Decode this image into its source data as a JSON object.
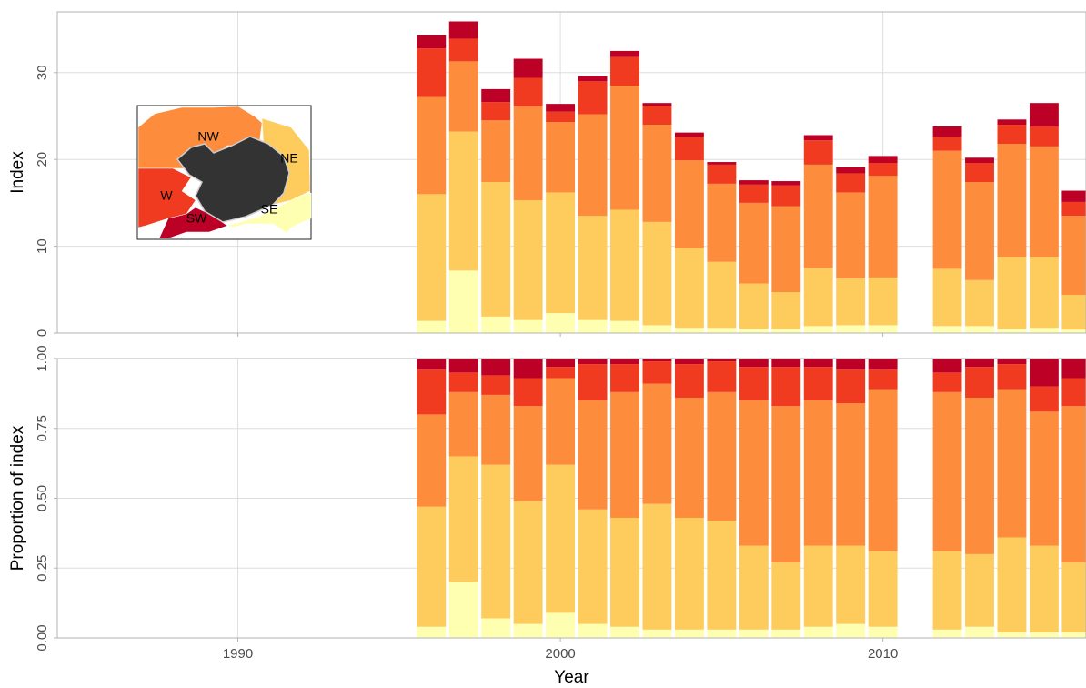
{
  "chart_data": [
    {
      "type": "stacked-bar",
      "ylabel": "Index",
      "x": [
        1996,
        1997,
        1998,
        1999,
        2000,
        2001,
        2002,
        2003,
        2004,
        2005,
        2006,
        2007,
        2008,
        2009,
        2010,
        2012,
        2013,
        2014,
        2015,
        2016
      ],
      "xlim": [
        1984.4,
        2016.3
      ],
      "xticks": [
        1990,
        2000,
        2010
      ],
      "ylim": [
        0,
        37
      ],
      "yticks": [
        0,
        10,
        20,
        30
      ],
      "grid": true,
      "series": [
        {
          "name": "SE",
          "color": "#ffffb2",
          "values": [
            1.4,
            7.2,
            1.9,
            1.5,
            2.3,
            1.5,
            1.4,
            0.9,
            0.6,
            0.6,
            0.5,
            0.5,
            0.8,
            0.9,
            0.9,
            0.8,
            0.8,
            0.5,
            0.6,
            0.4
          ]
        },
        {
          "name": "NE",
          "color": "#fecc5c",
          "values": [
            14.6,
            16.0,
            15.5,
            13.8,
            13.9,
            12.0,
            12.8,
            11.9,
            9.2,
            7.6,
            5.2,
            4.2,
            6.7,
            5.4,
            5.5,
            6.6,
            5.3,
            8.3,
            8.2,
            4.0
          ]
        },
        {
          "name": "NW",
          "color": "#fd8d3c",
          "values": [
            11.2,
            8.1,
            7.1,
            10.8,
            8.1,
            11.7,
            14.3,
            11.2,
            10.1,
            9.0,
            9.3,
            9.9,
            11.9,
            9.9,
            11.7,
            13.6,
            11.3,
            13.0,
            12.7,
            9.1
          ]
        },
        {
          "name": "W",
          "color": "#f03b20",
          "values": [
            5.6,
            2.6,
            2.1,
            3.3,
            1.2,
            3.8,
            3.3,
            2.2,
            2.7,
            2.2,
            2.1,
            2.4,
            2.8,
            2.2,
            1.5,
            1.6,
            2.2,
            2.2,
            2.3,
            1.6
          ]
        },
        {
          "name": "SW",
          "color": "#bd0026",
          "values": [
            1.5,
            2.0,
            1.5,
            2.2,
            0.9,
            0.6,
            0.7,
            0.3,
            0.5,
            0.3,
            0.5,
            0.5,
            0.6,
            0.7,
            0.8,
            1.2,
            0.6,
            0.6,
            2.7,
            1.3
          ]
        }
      ]
    },
    {
      "type": "stacked-bar",
      "ylabel": "Proportion of index",
      "xlabel": "Year",
      "x": [
        1996,
        1997,
        1998,
        1999,
        2000,
        2001,
        2002,
        2003,
        2004,
        2005,
        2006,
        2007,
        2008,
        2009,
        2010,
        2012,
        2013,
        2014,
        2015,
        2016
      ],
      "xlim": [
        1984.4,
        2016.3
      ],
      "xticks": [
        1990,
        2000,
        2010
      ],
      "ylim": [
        0,
        1.0
      ],
      "yticks": [
        {
          "value": 0,
          "label": "0.00"
        },
        {
          "value": 0.25,
          "label": "0.25"
        },
        {
          "value": 0.5,
          "label": "0.50"
        },
        {
          "value": 0.75,
          "label": "0.75"
        },
        {
          "value": 1,
          "label": "1.00"
        }
      ],
      "grid": true,
      "series": [
        {
          "name": "SE",
          "color": "#ffffb2",
          "values": [
            0.04,
            0.2,
            0.07,
            0.05,
            0.09,
            0.05,
            0.04,
            0.03,
            0.03,
            0.03,
            0.03,
            0.03,
            0.04,
            0.05,
            0.04,
            0.03,
            0.04,
            0.02,
            0.02,
            0.02
          ]
        },
        {
          "name": "NE",
          "color": "#fecc5c",
          "values": [
            0.43,
            0.45,
            0.55,
            0.44,
            0.53,
            0.41,
            0.39,
            0.45,
            0.4,
            0.39,
            0.3,
            0.24,
            0.29,
            0.28,
            0.27,
            0.28,
            0.26,
            0.34,
            0.31,
            0.25
          ]
        },
        {
          "name": "NW",
          "color": "#fd8d3c",
          "values": [
            0.33,
            0.23,
            0.25,
            0.34,
            0.31,
            0.39,
            0.45,
            0.43,
            0.43,
            0.46,
            0.52,
            0.56,
            0.52,
            0.51,
            0.58,
            0.57,
            0.56,
            0.53,
            0.48,
            0.56
          ]
        },
        {
          "name": "W",
          "color": "#f03b20",
          "values": [
            0.16,
            0.07,
            0.07,
            0.1,
            0.04,
            0.13,
            0.1,
            0.08,
            0.12,
            0.11,
            0.12,
            0.14,
            0.12,
            0.12,
            0.07,
            0.07,
            0.11,
            0.09,
            0.09,
            0.1
          ]
        },
        {
          "name": "SW",
          "color": "#bd0026",
          "values": [
            0.04,
            0.05,
            0.06,
            0.07,
            0.03,
            0.02,
            0.02,
            0.01,
            0.02,
            0.01,
            0.03,
            0.03,
            0.03,
            0.04,
            0.04,
            0.05,
            0.03,
            0.02,
            0.1,
            0.07
          ]
        }
      ]
    }
  ]
}
